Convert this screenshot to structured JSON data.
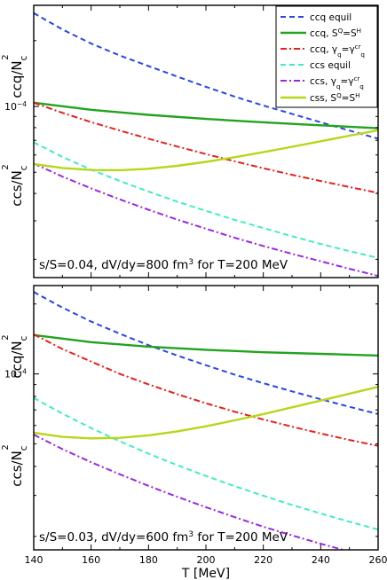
{
  "chart_data": [
    {
      "type": "line",
      "panel": "top",
      "xlim": [
        140,
        260
      ],
      "yscale": "log",
      "ylim": [
        1.65e-05,
        0.00029
      ],
      "ylabel_top_base": "ccq/N",
      "ylabel_top_sub": "c",
      "ylabel_top_sup": "2",
      "ylabel_bot_base": "ccs/N",
      "ylabel_bot_sub": "c",
      "ylabel_bot_sup": "2",
      "ytick_label_base": "10",
      "ytick_label_exp": "−4",
      "ytick_value": 0.0001,
      "annotation": "s/S=0.04, dV/dy=800 fm",
      "annotation_sup": "3",
      "annotation_tail": " for T=200 MeV",
      "legend_position": "top-right",
      "legend": [
        {
          "parts": [
            [
              "ccq equil",
              ""
            ]
          ]
        },
        {
          "parts": [
            [
              "ccq, S",
              ""
            ],
            [
              "Q",
              "sup"
            ],
            [
              "=S",
              ""
            ],
            [
              "H",
              "sup"
            ]
          ]
        },
        {
          "parts": [
            [
              "ccq, γ",
              ""
            ],
            [
              "q",
              "sub"
            ],
            [
              "=γ",
              ""
            ],
            [
              "cr",
              "sup"
            ],
            [
              "q",
              "sub"
            ]
          ]
        },
        {
          "parts": [
            [
              "ccs equil",
              ""
            ]
          ]
        },
        {
          "parts": [
            [
              "ccs, γ",
              ""
            ],
            [
              "q",
              "sub"
            ],
            [
              "=γ",
              ""
            ],
            [
              "cr",
              "sup"
            ],
            [
              "q",
              "sub"
            ]
          ]
        },
        {
          "parts": [
            [
              "css, S",
              ""
            ],
            [
              "Q",
              "sup"
            ],
            [
              "=S",
              ""
            ],
            [
              "H",
              "sup"
            ]
          ]
        }
      ],
      "series": [
        {
          "color": "#2b44e8",
          "dash": "6,4",
          "width": 2,
          "x": [
            140,
            150,
            160,
            170,
            180,
            190,
            200,
            210,
            220,
            230,
            240,
            250,
            260
          ],
          "y": [
            0.000267,
            0.000225,
            0.000194,
            0.000171,
            0.000153,
            0.000137,
            0.000123,
            0.000111,
            0.000101,
            9.25e-05,
            8.46e-05,
            7.76e-05,
            7.12e-05
          ]
        },
        {
          "color": "#21a31e",
          "dash": "",
          "width": 2.4,
          "x": [
            140,
            160,
            180,
            200,
            220,
            240,
            260
          ],
          "y": [
            0.000104,
            9.65e-05,
            9.15e-05,
            8.77e-05,
            8.46e-05,
            8.2e-05,
            7.95e-05
          ]
        },
        {
          "color": "#e8201c",
          "dash": "7,3,2,3",
          "width": 2,
          "x": [
            140,
            150,
            160,
            170,
            180,
            190,
            200,
            210,
            220,
            230,
            240,
            250,
            260
          ],
          "y": [
            0.000104,
            9.35e-05,
            8.48e-05,
            7.76e-05,
            7.12e-05,
            6.56e-05,
            6.06e-05,
            5.61e-05,
            5.22e-05,
            4.87e-05,
            4.56e-05,
            4.28e-05,
            4.02e-05
          ]
        },
        {
          "color": "#3deec0",
          "dash": "6,4",
          "width": 2,
          "x": [
            140,
            150,
            160,
            170,
            180,
            190,
            200,
            210,
            220,
            230,
            240,
            250,
            260
          ],
          "y": [
            6.85e-05,
            5.88e-05,
            5.14e-05,
            4.56e-05,
            4.08e-05,
            3.67e-05,
            3.33e-05,
            3.03e-05,
            2.78e-05,
            2.55e-05,
            2.35e-05,
            2.18e-05,
            2.03e-05
          ]
        },
        {
          "color": "#9b27e6",
          "dash": "7,3,2,3",
          "width": 2,
          "x": [
            140,
            150,
            160,
            170,
            180,
            190,
            200,
            210,
            220,
            230,
            240,
            250,
            260
          ],
          "y": [
            5.48e-05,
            4.78e-05,
            4.22e-05,
            3.76e-05,
            3.37e-05,
            3.04e-05,
            2.76e-05,
            2.51e-05,
            2.3e-05,
            2.12e-05,
            1.96e-05,
            1.81e-05,
            1.68e-05
          ]
        },
        {
          "color": "#b8d61a",
          "dash": "",
          "width": 2.4,
          "x": [
            140,
            150,
            160,
            170,
            180,
            190,
            200,
            210,
            220,
            230,
            240,
            250,
            260
          ],
          "y": [
            5.45e-05,
            5.23e-05,
            5.12e-05,
            5.11e-05,
            5.19e-05,
            5.35e-05,
            5.58e-05,
            5.86e-05,
            6.18e-05,
            6.54e-05,
            6.93e-05,
            7.35e-05,
            7.78e-05
          ]
        }
      ]
    },
    {
      "type": "line",
      "panel": "bottom",
      "xlim": [
        140,
        260
      ],
      "yscale": "log",
      "ylim": [
        1.75e-05,
        0.00024
      ],
      "xlabel": "T [MeV]",
      "xticks": [
        140,
        160,
        180,
        200,
        220,
        240,
        260
      ],
      "ylabel_top_base": "ccq/N",
      "ylabel_top_sub": "c",
      "ylabel_top_sup": "2",
      "ylabel_bot_base": "ccs/N",
      "ylabel_bot_sub": "c",
      "ylabel_bot_sup": "2",
      "ytick_label_base": "10",
      "ytick_label_exp": "−4",
      "ytick_value": 0.0001,
      "annotation": "s/S=0.03, dV/dy=600 fm",
      "annotation_sup": "3",
      "annotation_tail": " for T=200 MeV",
      "series": [
        {
          "color": "#2b44e8",
          "dash": "6,4",
          "width": 2,
          "x": [
            140,
            150,
            160,
            170,
            180,
            190,
            200,
            210,
            220,
            230,
            240,
            250,
            260
          ],
          "y": [
            0.000225,
            0.000193,
            0.000168,
            0.000149,
            0.000133,
            0.00012,
            0.000109,
            9.93e-05,
            9.12e-05,
            8.41e-05,
            7.78e-05,
            7.22e-05,
            6.72e-05
          ]
        },
        {
          "color": "#21a31e",
          "dash": "",
          "width": 2.4,
          "x": [
            140,
            160,
            180,
            200,
            220,
            240,
            260
          ],
          "y": [
            0.000147,
            0.000137,
            0.000131,
            0.000127,
            0.000124,
            0.000122,
            0.00012
          ]
        },
        {
          "color": "#e8201c",
          "dash": "7,3,2,3",
          "width": 2,
          "x": [
            140,
            150,
            160,
            170,
            180,
            190,
            200,
            210,
            220,
            230,
            240,
            250,
            260
          ],
          "y": [
            0.000148,
            0.000128,
            0.000113,
            0.0001,
            9.02e-05,
            8.18e-05,
            7.48e-05,
            6.88e-05,
            6.37e-05,
            5.93e-05,
            5.54e-05,
            5.2e-05,
            4.9e-05
          ]
        },
        {
          "color": "#3deec0",
          "dash": "6,4",
          "width": 2,
          "x": [
            140,
            150,
            160,
            170,
            180,
            190,
            200,
            210,
            220,
            230,
            240,
            250,
            260
          ],
          "y": [
            7.88e-05,
            6.75e-05,
            5.85e-05,
            5.13e-05,
            4.54e-05,
            4.05e-05,
            3.64e-05,
            3.29e-05,
            2.99e-05,
            2.73e-05,
            2.51e-05,
            2.31e-05,
            2.14e-05
          ]
        },
        {
          "color": "#9b27e6",
          "dash": "7,3,2,3",
          "width": 2,
          "x": [
            140,
            150,
            160,
            170,
            180,
            190,
            200,
            210,
            220,
            230,
            240,
            250,
            260
          ],
          "y": [
            5.48e-05,
            4.75e-05,
            4.17e-05,
            3.7e-05,
            3.3e-05,
            2.96e-05,
            2.67e-05,
            2.42e-05,
            2.2e-05,
            2.02e-05,
            1.86e-05,
            1.72e-05,
            1.59e-05
          ]
        },
        {
          "color": "#b8d61a",
          "dash": "",
          "width": 2.4,
          "x": [
            140,
            150,
            160,
            170,
            180,
            190,
            200,
            210,
            220,
            230,
            240,
            250,
            260
          ],
          "y": [
            5.58e-05,
            5.36e-05,
            5.28e-05,
            5.31e-05,
            5.44e-05,
            5.66e-05,
            5.95e-05,
            6.31e-05,
            6.72e-05,
            7.18e-05,
            7.68e-05,
            8.22e-05,
            8.79e-05
          ]
        }
      ]
    }
  ]
}
